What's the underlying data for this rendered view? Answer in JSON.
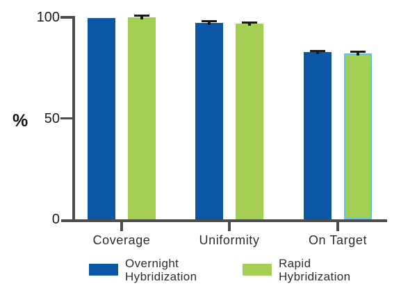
{
  "chart_data": {
    "type": "bar",
    "title": "",
    "ylabel": "%",
    "xlabel": "",
    "categories": [
      "Coverage",
      "Uniformity",
      "On Target"
    ],
    "series": [
      {
        "name": "Overnight Hybridization",
        "color": "#0b57a5",
        "values": [
          99.7,
          97.4,
          82.7
        ],
        "errors": [
          0,
          0.6,
          0.7
        ]
      },
      {
        "name": "Rapid Hybridization",
        "color": "#a5ce55",
        "values": [
          99.9,
          96.8,
          82.1
        ],
        "errors": [
          1.0,
          0.7,
          1.0
        ]
      }
    ],
    "ylim": [
      0,
      100
    ],
    "yticks": [
      {
        "value": 0,
        "label": "0"
      },
      {
        "value": 50,
        "label": "50"
      },
      {
        "value": 100,
        "label": "100"
      }
    ],
    "grid": false,
    "legend_position": "bottom",
    "highlight": {
      "series": 1,
      "category": 2,
      "outline_color": "#5cc2e9"
    }
  },
  "legend": {
    "items": [
      {
        "label": "Overnight Hybridization",
        "line1": "Overnight",
        "line2": "Hybridization",
        "color": "#0b57a5"
      },
      {
        "label": "Rapid Hybridization",
        "line1": "Rapid",
        "line2": "Hybridization",
        "color": "#a5ce55"
      }
    ]
  },
  "colors": {
    "axis": "#4d4d4d",
    "text": "#2b2b2b",
    "error_bar": "#1a1a1a",
    "background": "#ffffff"
  }
}
